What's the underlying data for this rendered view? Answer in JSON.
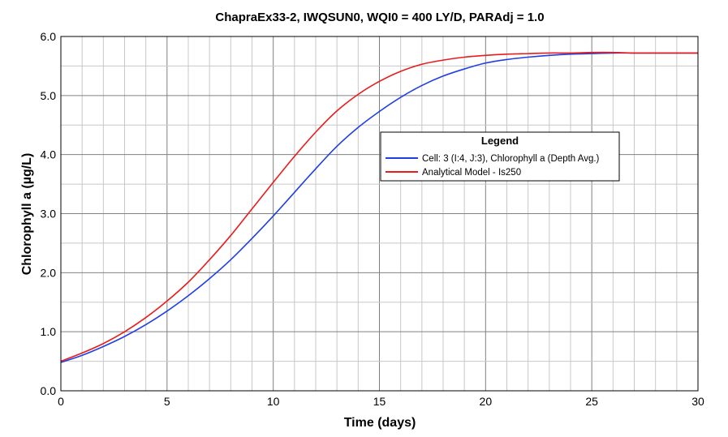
{
  "chart_data": {
    "type": "line",
    "title": "ChapraEx33-2, IWQSUN0, WQI0 = 400 LY/D, PARAdj = 1.0",
    "xlabel": "Time (days)",
    "ylabel": "Chlorophyll a (µg/L)",
    "xlim": [
      0,
      30
    ],
    "ylim": [
      0,
      6
    ],
    "xticks": [
      0,
      5,
      10,
      15,
      20,
      25,
      30
    ],
    "xtick_labels": [
      "0",
      "5",
      "10",
      "15",
      "20",
      "25",
      "30"
    ],
    "yticks": [
      0,
      1,
      2,
      3,
      4,
      5,
      6
    ],
    "ytick_labels": [
      "0.0",
      "1.0",
      "2.0",
      "3.0",
      "4.0",
      "5.0",
      "6.0"
    ],
    "x_minor_step": 1,
    "y_minor_step": 0.5,
    "grid": true,
    "legend": {
      "title": "Legend",
      "placement": "center-right"
    },
    "series": [
      {
        "name": "Cell: 3 (I:4, J:3), Chlorophyll a (Depth Avg.)",
        "color": "#1f3fe6",
        "x": [
          0,
          1,
          2,
          3,
          4,
          5,
          6,
          7,
          8,
          9,
          10,
          11,
          12,
          13,
          14,
          15,
          16,
          17,
          18,
          19,
          20,
          21,
          22,
          23,
          24,
          25,
          26,
          27,
          28,
          29,
          30
        ],
        "y": [
          0.48,
          0.6,
          0.75,
          0.92,
          1.12,
          1.35,
          1.61,
          1.9,
          2.22,
          2.58,
          2.96,
          3.36,
          3.76,
          4.14,
          4.46,
          4.73,
          4.97,
          5.17,
          5.33,
          5.45,
          5.55,
          5.61,
          5.65,
          5.68,
          5.7,
          5.71,
          5.72,
          5.72,
          5.72,
          5.72,
          5.72
        ]
      },
      {
        "name": "Analytical Model - Is250",
        "color": "#e81c1c",
        "x": [
          0,
          1,
          2,
          3,
          4,
          5,
          6,
          7,
          8,
          9,
          10,
          11,
          12,
          13,
          14,
          15,
          16,
          17,
          18,
          19,
          20,
          21,
          22,
          23,
          24,
          25,
          26,
          27,
          28,
          29,
          30
        ],
        "y": [
          0.5,
          0.64,
          0.8,
          1.0,
          1.24,
          1.52,
          1.84,
          2.22,
          2.63,
          3.08,
          3.53,
          3.97,
          4.38,
          4.74,
          5.02,
          5.24,
          5.41,
          5.53,
          5.6,
          5.65,
          5.68,
          5.7,
          5.71,
          5.72,
          5.72,
          5.73,
          5.73,
          5.72,
          5.72,
          5.72,
          5.72
        ]
      }
    ]
  }
}
